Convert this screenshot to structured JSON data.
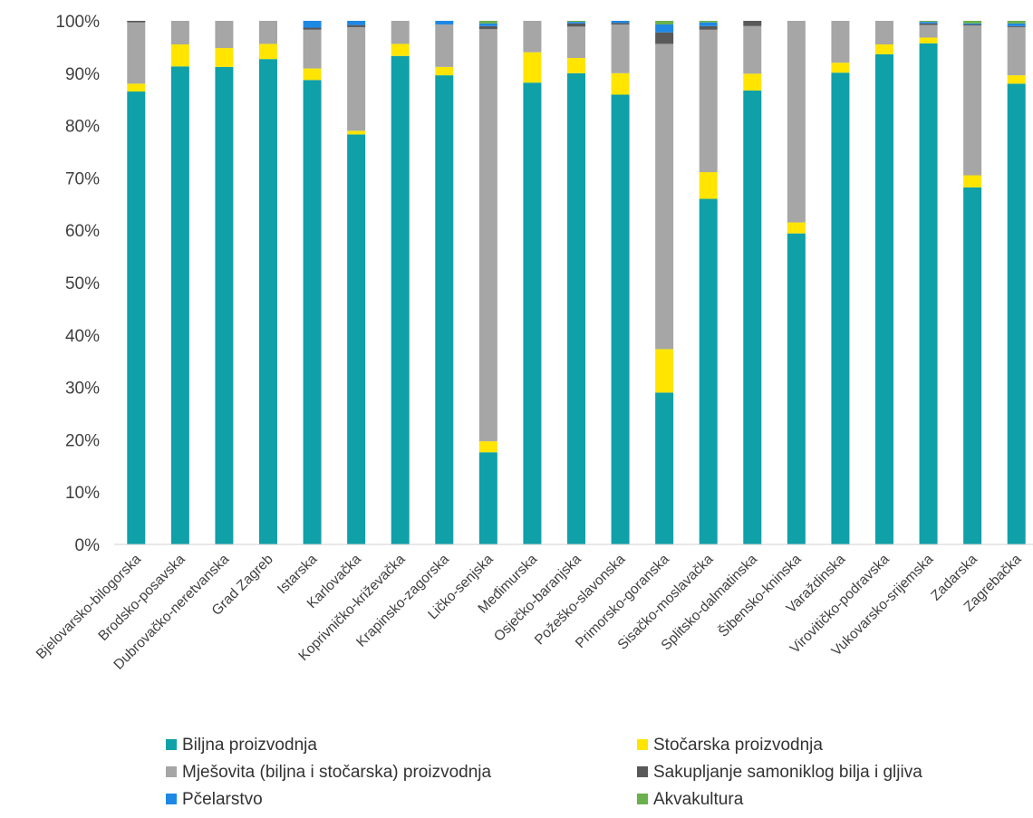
{
  "chart_data": {
    "type": "bar",
    "stacked": true,
    "percent": true,
    "ylim": [
      0,
      100
    ],
    "yticks": [
      "0%",
      "10%",
      "20%",
      "30%",
      "40%",
      "50%",
      "60%",
      "70%",
      "80%",
      "90%",
      "100%"
    ],
    "grid": false,
    "legend_position": "bottom",
    "categories": [
      "Bjelovarsko-bilogorska",
      "Brodsko-posavska",
      "Dubrovačko-neretvanska",
      "Grad Zagreb",
      "Istarska",
      "Karlovačka",
      "Koprivničko-križevačka",
      "Krapinsko-zagorska",
      "Ličko-senjska",
      "Međimurska",
      "Osječko-baranjska",
      "Požeško-slavonska",
      "Primorsko-goranska",
      "Sisačko-moslavačka",
      "Splitsko-dalmatinska",
      "Šibensko-kninska",
      "Varaždinska",
      "Virovitičko-podravska",
      "Vukovarsko-srijemska",
      "Zadarska",
      "Zagrebačka"
    ],
    "series": [
      {
        "name": "Biljna proizvodnja",
        "color": "#0FA0A8",
        "values": [
          86.5,
          91.3,
          91.2,
          92.7,
          88.7,
          78.3,
          93.3,
          89.6,
          17.6,
          88.2,
          90.0,
          85.9,
          29.0,
          66.0,
          86.7,
          59.4,
          90.1,
          93.6,
          95.7,
          68.2,
          88.0
        ]
      },
      {
        "name": "Stočarska proizvodnja",
        "color": "#FFE500",
        "values": [
          1.5,
          4.2,
          3.6,
          2.9,
          2.2,
          0.7,
          2.3,
          1.6,
          2.1,
          5.8,
          2.9,
          4.1,
          8.3,
          5.1,
          3.2,
          2.1,
          1.9,
          1.9,
          1.1,
          2.3,
          1.6
        ]
      },
      {
        "name": "Mješovita (biljna i stočarska) proizvodnja",
        "color": "#A6A6A6",
        "values": [
          11.7,
          4.5,
          5.2,
          4.4,
          7.4,
          19.8,
          4.4,
          8.1,
          78.7,
          6.0,
          6.0,
          9.3,
          58.3,
          27.2,
          9.1,
          38.5,
          8.0,
          4.5,
          2.4,
          28.6,
          9.2
        ]
      },
      {
        "name": "Sakupljanje samoniklog bilja i gljiva",
        "color": "#595959",
        "values": [
          0.3,
          0.0,
          0.0,
          0.0,
          0.4,
          0.4,
          0.0,
          0.0,
          0.6,
          0.0,
          0.6,
          0.3,
          2.2,
          0.7,
          1.0,
          0.0,
          0.0,
          0.0,
          0.3,
          0.2,
          0.2
        ]
      },
      {
        "name": "Pčelarstvo",
        "color": "#1E88E5",
        "values": [
          0.0,
          0.0,
          0.0,
          0.0,
          1.3,
          0.8,
          0.0,
          0.7,
          0.5,
          0.0,
          0.3,
          0.4,
          1.5,
          0.7,
          0.0,
          0.0,
          0.0,
          0.0,
          0.3,
          0.2,
          0.5
        ]
      },
      {
        "name": "Akvakultura",
        "color": "#6AB04C",
        "values": [
          0.0,
          0.0,
          0.0,
          0.0,
          0.0,
          0.0,
          0.0,
          0.0,
          0.5,
          0.0,
          0.2,
          0.0,
          0.7,
          0.3,
          0.0,
          0.0,
          0.0,
          0.0,
          0.2,
          0.5,
          0.5
        ]
      }
    ]
  }
}
